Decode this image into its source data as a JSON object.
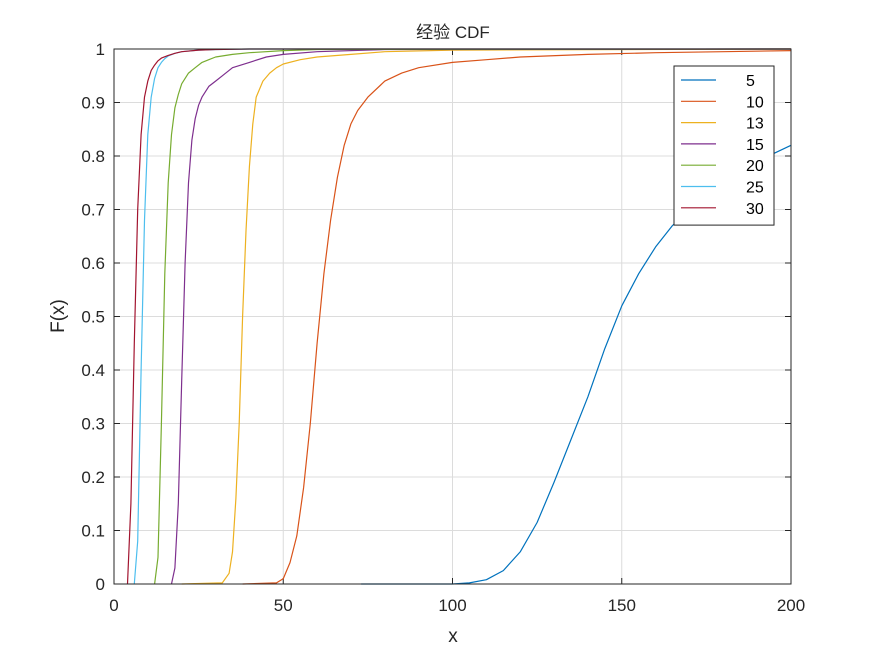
{
  "chart_data": {
    "type": "line",
    "title": "经验 CDF",
    "xlabel": "x",
    "ylabel": "F(x)",
    "xlim": [
      0,
      200
    ],
    "ylim": [
      0,
      1
    ],
    "grid": true,
    "legend_placement": "top-right",
    "x_ticks": [
      "0",
      "50",
      "100",
      "150",
      "200"
    ],
    "y_ticks": [
      "0",
      "0.1",
      "0.2",
      "0.3",
      "0.4",
      "0.5",
      "0.6",
      "0.7",
      "0.8",
      "0.9",
      "1"
    ],
    "x_tick_values": [
      0,
      50,
      100,
      150,
      200
    ],
    "y_tick_values": [
      0,
      0.1,
      0.2,
      0.3,
      0.4,
      0.5,
      0.6,
      0.7,
      0.8,
      0.9,
      1
    ],
    "series": [
      {
        "name": "5",
        "color": "#0072BD",
        "x": [
          73,
          100,
          105,
          110,
          115,
          120,
          125,
          130,
          135,
          140,
          145,
          150,
          155,
          160,
          165,
          170,
          175,
          180,
          185,
          190,
          195,
          200
        ],
        "y": [
          0.0,
          0.0,
          0.002,
          0.008,
          0.025,
          0.06,
          0.115,
          0.19,
          0.27,
          0.35,
          0.44,
          0.52,
          0.58,
          0.63,
          0.67,
          0.7,
          0.725,
          0.75,
          0.77,
          0.79,
          0.805,
          0.82
        ]
      },
      {
        "name": "10",
        "color": "#D95319",
        "x": [
          38,
          48,
          50,
          52,
          54,
          56,
          58,
          60,
          62,
          64,
          66,
          68,
          70,
          72,
          75,
          80,
          85,
          90,
          100,
          110,
          120,
          140,
          160,
          180,
          200
        ],
        "y": [
          0.0,
          0.002,
          0.01,
          0.04,
          0.09,
          0.18,
          0.3,
          0.45,
          0.58,
          0.68,
          0.76,
          0.82,
          0.86,
          0.885,
          0.91,
          0.94,
          0.955,
          0.965,
          0.975,
          0.98,
          0.985,
          0.99,
          0.993,
          0.995,
          0.997
        ]
      },
      {
        "name": "13",
        "color": "#EDB120",
        "x": [
          20,
          32,
          34,
          35,
          36,
          37,
          38,
          39,
          40,
          41,
          42,
          44,
          46,
          48,
          50,
          55,
          60,
          70,
          80,
          100,
          200
        ],
        "y": [
          0.0,
          0.002,
          0.02,
          0.06,
          0.16,
          0.3,
          0.5,
          0.66,
          0.78,
          0.86,
          0.91,
          0.94,
          0.955,
          0.965,
          0.972,
          0.98,
          0.985,
          0.99,
          0.995,
          0.998,
          1.0
        ]
      },
      {
        "name": "15",
        "color": "#7E2F8E",
        "x": [
          17,
          18,
          19,
          20,
          21,
          22,
          23,
          24,
          25,
          26,
          28,
          30,
          32,
          35,
          40,
          45,
          50,
          60,
          80,
          200
        ],
        "y": [
          0.0,
          0.03,
          0.15,
          0.38,
          0.6,
          0.75,
          0.83,
          0.87,
          0.895,
          0.91,
          0.93,
          0.94,
          0.95,
          0.965,
          0.975,
          0.985,
          0.99,
          0.995,
          0.999,
          1.0
        ]
      },
      {
        "name": "20",
        "color": "#77AC30",
        "x": [
          12,
          13,
          14,
          15,
          16,
          17,
          18,
          19,
          20,
          22,
          24,
          26,
          28,
          30,
          35,
          40,
          50,
          60,
          200
        ],
        "y": [
          0.0,
          0.05,
          0.3,
          0.58,
          0.75,
          0.84,
          0.89,
          0.915,
          0.935,
          0.955,
          0.965,
          0.975,
          0.98,
          0.985,
          0.99,
          0.993,
          0.997,
          0.999,
          1.0
        ]
      },
      {
        "name": "25",
        "color": "#4DBEEE",
        "x": [
          6,
          7,
          8,
          9,
          10,
          11,
          12,
          13,
          14,
          15,
          16,
          18,
          20,
          25,
          30,
          40,
          200
        ],
        "y": [
          0.0,
          0.08,
          0.4,
          0.68,
          0.84,
          0.91,
          0.945,
          0.965,
          0.975,
          0.982,
          0.987,
          0.992,
          0.995,
          0.998,
          0.999,
          1.0,
          1.0
        ]
      },
      {
        "name": "30",
        "color": "#A2142F",
        "x": [
          4,
          5,
          6,
          7,
          8,
          9,
          10,
          11,
          12,
          13,
          14,
          16,
          18,
          20,
          25,
          30,
          40,
          200
        ],
        "y": [
          0.0,
          0.15,
          0.45,
          0.7,
          0.84,
          0.91,
          0.94,
          0.96,
          0.97,
          0.978,
          0.983,
          0.988,
          0.992,
          0.995,
          0.998,
          0.999,
          1.0,
          1.0
        ]
      }
    ]
  }
}
